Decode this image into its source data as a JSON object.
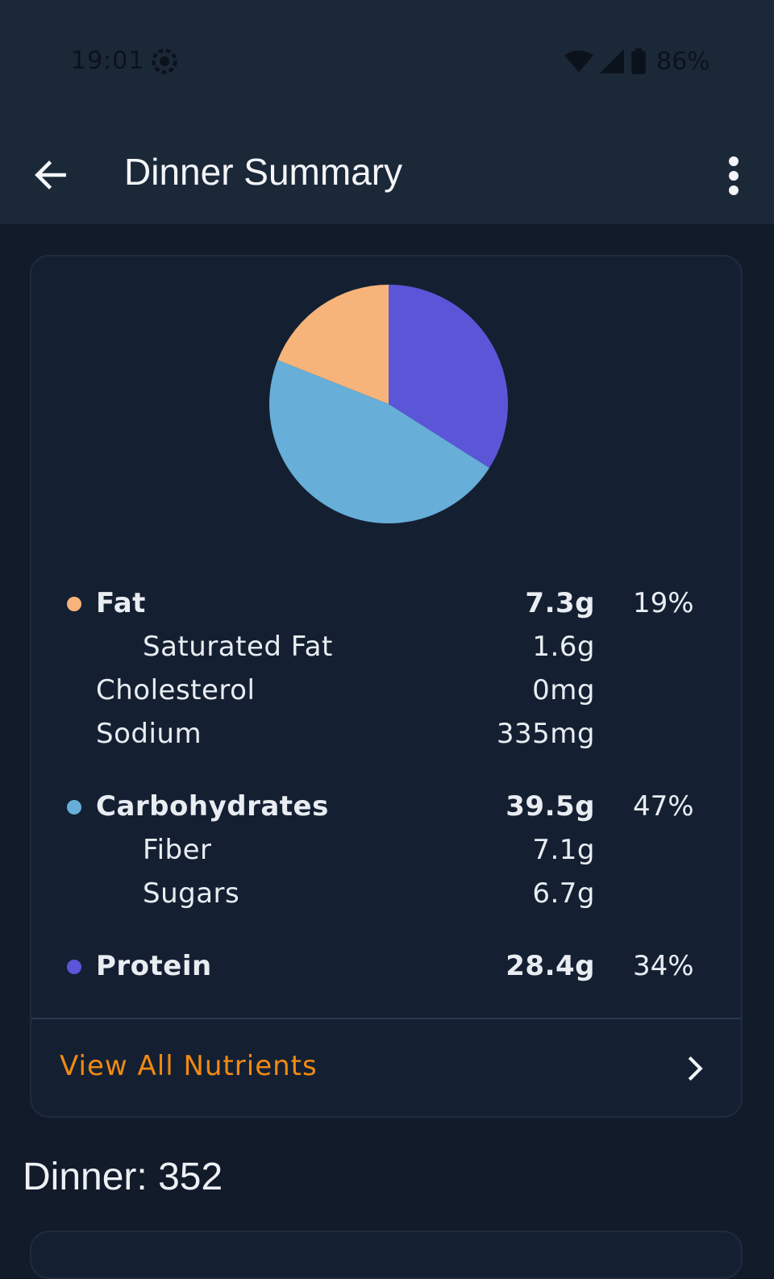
{
  "status_bar": {
    "time": "19:01",
    "battery": "86%",
    "icons": [
      "settings-sync-icon",
      "wifi-icon",
      "signal-icon",
      "battery-icon"
    ]
  },
  "app_bar": {
    "title": "Dinner Summary",
    "back_icon": "arrow-left-icon",
    "more_icon": "more-vert-icon"
  },
  "nutrition": {
    "fat": {
      "label": "Fat",
      "amount": "7.3g",
      "percent": "19%",
      "color": "#f6b47a"
    },
    "saturated_fat": {
      "label": "Saturated Fat",
      "amount": "1.6g"
    },
    "cholesterol": {
      "label": "Cholesterol",
      "amount": "0mg"
    },
    "sodium": {
      "label": "Sodium",
      "amount": "335mg"
    },
    "carbs": {
      "label": "Carbohydrates",
      "amount": "39.5g",
      "percent": "47%",
      "color": "#67aed8"
    },
    "fiber": {
      "label": "Fiber",
      "amount": "7.1g"
    },
    "sugars": {
      "label": "Sugars",
      "amount": "6.7g"
    },
    "protein": {
      "label": "Protein",
      "amount": "28.4g",
      "percent": "34%",
      "color": "#5b56d8"
    }
  },
  "chart_data": {
    "type": "pie",
    "categories": [
      "Protein",
      "Carbohydrates",
      "Fat"
    ],
    "values": [
      34,
      47,
      19
    ],
    "colors": [
      "#5b56d8",
      "#67aed8",
      "#f6b47a"
    ],
    "title": "",
    "start": "top",
    "direction": "clockwise"
  },
  "actions": {
    "view_all_label": "View All Nutrients",
    "view_all_icon": "chevron-right-icon"
  },
  "section": {
    "title": "Dinner: 352"
  },
  "colors": {
    "background": "#111b2a",
    "app_bar": "#1b2838",
    "card": "#142032",
    "accent": "#f18a12"
  }
}
